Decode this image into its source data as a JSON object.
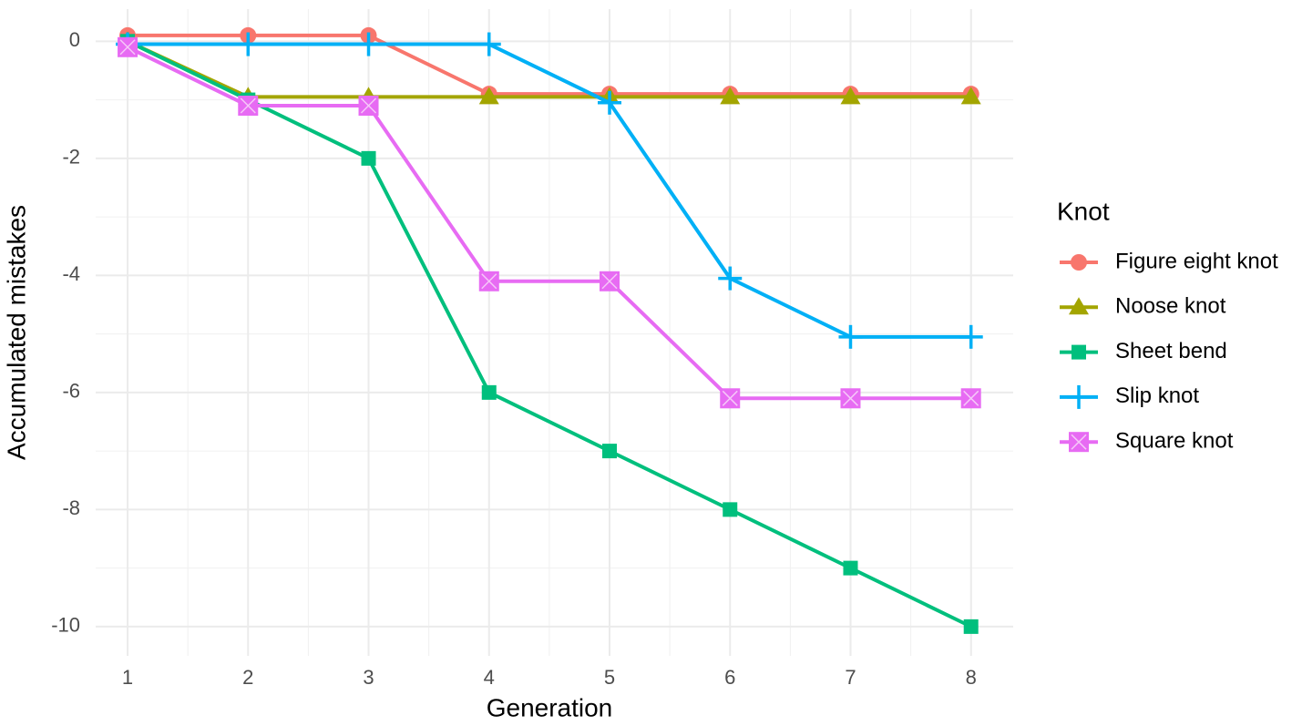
{
  "chart_data": {
    "type": "line",
    "x_label": "Generation",
    "y_label": "Accumulated mistakes",
    "legend_title": "Knot",
    "legend_position": "right",
    "grid": true,
    "x": [
      1,
      2,
      3,
      4,
      5,
      6,
      7,
      8
    ],
    "xlim": [
      0.735,
      8.35
    ],
    "xticks": [
      1,
      2,
      3,
      4,
      5,
      6,
      7,
      8
    ],
    "ylim": [
      -10.5,
      0.55
    ],
    "yticks": [
      0,
      -2,
      -4,
      -6,
      -8,
      -10
    ],
    "series": [
      {
        "name": "Figure eight knot",
        "color": "#F8766D",
        "marker": "circle",
        "values": [
          0.1,
          0.1,
          0.1,
          -0.9,
          -0.9,
          -0.9,
          -0.9,
          -0.9
        ]
      },
      {
        "name": "Noose knot",
        "color": "#A3A500",
        "marker": "triangle",
        "values": [
          0,
          -0.95,
          -0.95,
          -0.95,
          -0.95,
          -0.95,
          -0.95,
          -0.95
        ]
      },
      {
        "name": "Sheet bend",
        "color": "#00BF7D",
        "marker": "square",
        "values": [
          0,
          -1,
          -2,
          -6,
          -7,
          -8,
          -9,
          -10
        ]
      },
      {
        "name": "Slip knot",
        "color": "#00B0F6",
        "marker": "plus",
        "values": [
          -0.05,
          -0.05,
          -0.05,
          -0.05,
          -1.05,
          -4.05,
          -5.05,
          -5.05
        ]
      },
      {
        "name": "Square knot",
        "color": "#E76BF3",
        "marker": "boxcross",
        "values": [
          -0.1,
          -1.1,
          -1.1,
          -4.1,
          -4.1,
          -6.1,
          -6.1,
          -6.1
        ]
      }
    ]
  }
}
